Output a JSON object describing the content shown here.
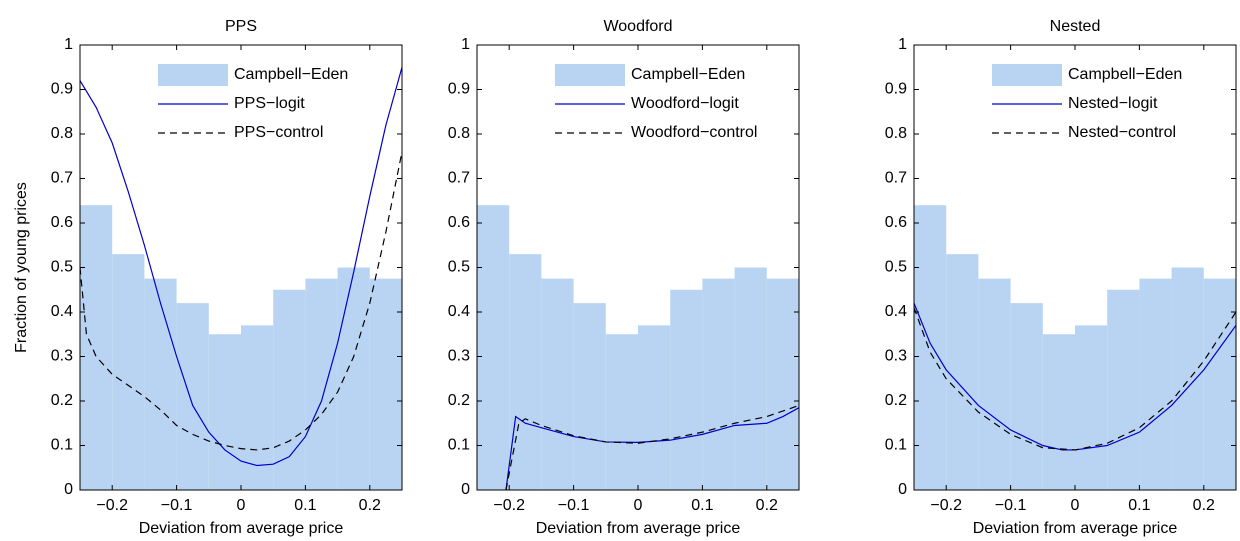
{
  "chart_data": [
    {
      "type": "combo",
      "title": "PPS",
      "x_label": "Deviation from average price",
      "y_label": "Fraction of young prices",
      "xlim": [
        -0.25,
        0.25
      ],
      "ylim": [
        0,
        1
      ],
      "xticks": [
        {
          "value": -0.2,
          "label": "−0.2"
        },
        {
          "value": -0.1,
          "label": "−0.1"
        },
        0,
        0.1,
        0.2
      ],
      "yticks": [
        0,
        0.1,
        0.2,
        0.3,
        0.4,
        0.5,
        0.6,
        0.7,
        0.8,
        0.9,
        1
      ],
      "bins": [
        -0.25,
        -0.2,
        -0.15,
        -0.1,
        -0.05,
        0,
        0.05,
        0.1,
        0.15,
        0.2,
        0.25
      ],
      "legend": "upper right",
      "series": [
        {
          "name": "Campbell−Eden",
          "kind": "histogram",
          "color": "#b9d4f3",
          "values": [
            0.64,
            0.53,
            0.475,
            0.42,
            0.35,
            0.37,
            0.45,
            0.475,
            0.5,
            0.475
          ]
        },
        {
          "name": "PPS−logit",
          "kind": "line",
          "color": "#0000cc",
          "dash": false,
          "x": [
            -0.25,
            -0.225,
            -0.2,
            -0.175,
            -0.15,
            -0.125,
            -0.1,
            -0.075,
            -0.05,
            -0.025,
            0,
            0.025,
            0.05,
            0.075,
            0.1,
            0.125,
            0.15,
            0.175,
            0.2,
            0.225,
            0.25
          ],
          "values": [
            0.92,
            0.86,
            0.78,
            0.67,
            0.55,
            0.42,
            0.3,
            0.19,
            0.13,
            0.09,
            0.065,
            0.055,
            0.058,
            0.075,
            0.12,
            0.2,
            0.33,
            0.49,
            0.66,
            0.82,
            0.95
          ]
        },
        {
          "name": "PPS−control",
          "kind": "line",
          "color": "#000000",
          "dash": true,
          "x": [
            -0.25,
            -0.24,
            -0.225,
            -0.2,
            -0.175,
            -0.15,
            -0.125,
            -0.1,
            -0.075,
            -0.05,
            -0.025,
            0,
            0.025,
            0.05,
            0.075,
            0.1,
            0.125,
            0.15,
            0.175,
            0.2,
            0.225,
            0.25
          ],
          "values": [
            0.5,
            0.35,
            0.3,
            0.26,
            0.235,
            0.21,
            0.18,
            0.145,
            0.125,
            0.11,
            0.1,
            0.093,
            0.09,
            0.095,
            0.11,
            0.135,
            0.17,
            0.22,
            0.3,
            0.42,
            0.58,
            0.76
          ]
        }
      ]
    },
    {
      "type": "combo",
      "title": "Woodford",
      "x_label": "Deviation from average price",
      "xlim": [
        -0.25,
        0.25
      ],
      "ylim": [
        0,
        1
      ],
      "xticks": [
        {
          "value": -0.2,
          "label": "−0.2"
        },
        {
          "value": -0.1,
          "label": "−0.1"
        },
        0,
        0.1,
        0.2
      ],
      "yticks": [
        0,
        0.1,
        0.2,
        0.3,
        0.4,
        0.5,
        0.6,
        0.7,
        0.8,
        0.9,
        1
      ],
      "bins": [
        -0.25,
        -0.2,
        -0.15,
        -0.1,
        -0.05,
        0,
        0.05,
        0.1,
        0.15,
        0.2,
        0.25
      ],
      "legend": "upper right",
      "series": [
        {
          "name": "Campbell−Eden",
          "kind": "histogram",
          "color": "#b9d4f3",
          "values": [
            0.64,
            0.53,
            0.475,
            0.42,
            0.35,
            0.37,
            0.45,
            0.475,
            0.5,
            0.475
          ]
        },
        {
          "name": "Woodford−logit",
          "kind": "line",
          "color": "#0000cc",
          "dash": false,
          "x": [
            -0.205,
            -0.19,
            -0.175,
            -0.15,
            -0.1,
            -0.05,
            0,
            0.05,
            0.1,
            0.15,
            0.2,
            0.225,
            0.25
          ],
          "values": [
            0,
            0.165,
            0.15,
            0.14,
            0.12,
            0.108,
            0.107,
            0.112,
            0.125,
            0.145,
            0.15,
            0.165,
            0.185
          ]
        },
        {
          "name": "Woodford−control",
          "kind": "line",
          "color": "#000000",
          "dash": true,
          "x": [
            -0.205,
            -0.185,
            -0.175,
            -0.15,
            -0.1,
            -0.05,
            0,
            0.05,
            0.1,
            0.15,
            0.2,
            0.25
          ],
          "values": [
            0,
            0.15,
            0.16,
            0.145,
            0.122,
            0.108,
            0.105,
            0.115,
            0.13,
            0.15,
            0.165,
            0.19
          ]
        }
      ]
    },
    {
      "type": "combo",
      "title": "Nested",
      "x_label": "Deviation from average price",
      "xlim": [
        -0.25,
        0.25
      ],
      "ylim": [
        0,
        1
      ],
      "xticks": [
        {
          "value": -0.2,
          "label": "−0.2"
        },
        {
          "value": -0.1,
          "label": "−0.1"
        },
        0,
        0.1,
        0.2
      ],
      "yticks": [
        0,
        0.1,
        0.2,
        0.3,
        0.4,
        0.5,
        0.6,
        0.7,
        0.8,
        0.9,
        1
      ],
      "bins": [
        -0.25,
        -0.2,
        -0.15,
        -0.1,
        -0.05,
        0,
        0.05,
        0.1,
        0.15,
        0.2,
        0.25
      ],
      "legend": "upper right",
      "series": [
        {
          "name": "Campbell−Eden",
          "kind": "histogram",
          "color": "#b9d4f3",
          "values": [
            0.64,
            0.53,
            0.475,
            0.42,
            0.35,
            0.37,
            0.45,
            0.475,
            0.5,
            0.475
          ]
        },
        {
          "name": "Nested−logit",
          "kind": "line",
          "color": "#0000cc",
          "dash": false,
          "x": [
            -0.25,
            -0.225,
            -0.2,
            -0.15,
            -0.1,
            -0.05,
            -0.02,
            0,
            0.05,
            0.1,
            0.15,
            0.2,
            0.25
          ],
          "values": [
            0.42,
            0.33,
            0.27,
            0.19,
            0.135,
            0.1,
            0.09,
            0.09,
            0.1,
            0.13,
            0.19,
            0.27,
            0.37
          ]
        },
        {
          "name": "Nested−control",
          "kind": "line",
          "color": "#000000",
          "dash": true,
          "x": [
            -0.25,
            -0.225,
            -0.2,
            -0.15,
            -0.1,
            -0.05,
            0,
            0.05,
            0.1,
            0.15,
            0.2,
            0.25
          ],
          "values": [
            0.41,
            0.31,
            0.25,
            0.175,
            0.125,
            0.095,
            0.09,
            0.105,
            0.14,
            0.2,
            0.29,
            0.4
          ]
        }
      ]
    }
  ]
}
